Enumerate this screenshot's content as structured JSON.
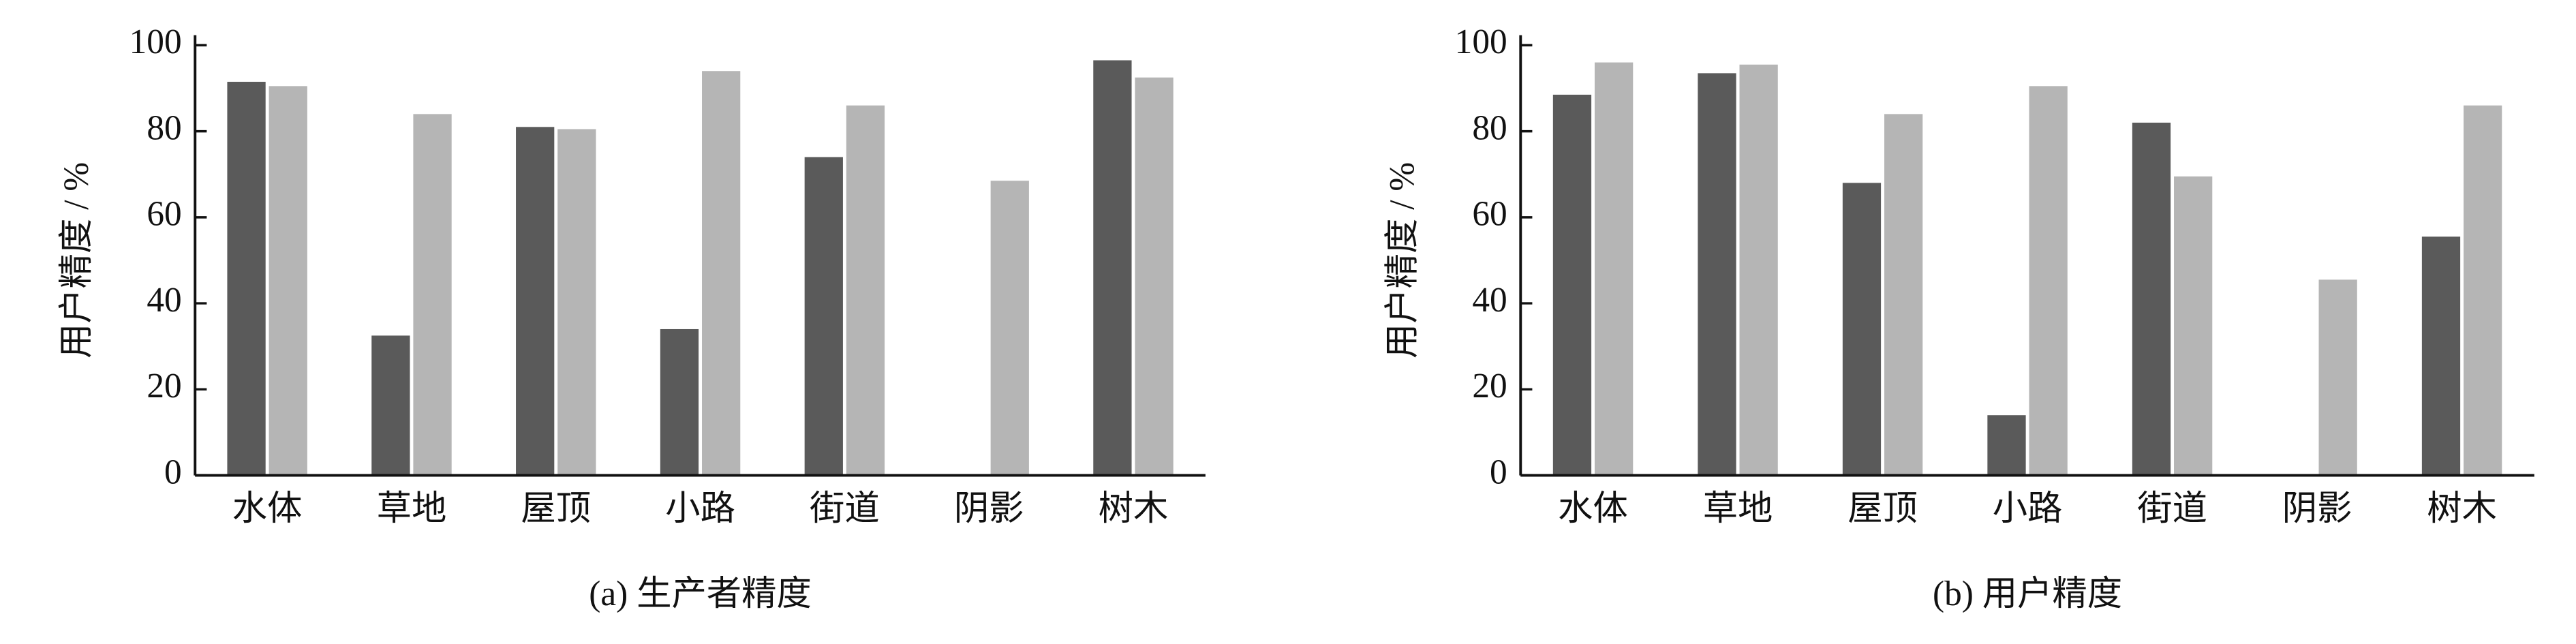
{
  "chart_data": [
    {
      "type": "bar",
      "title": "(a) 生产者精度",
      "y_label": "用户精度 / %",
      "categories": [
        "水体",
        "草地",
        "屋顶",
        "小路",
        "街道",
        "阴影",
        "树木"
      ],
      "series": [
        {
          "color": "#5a5a5a",
          "values": [
            91.5,
            32.5,
            81,
            34,
            74,
            null,
            96.5
          ]
        },
        {
          "color": "#b5b5b5",
          "values": [
            90.5,
            84,
            80.5,
            94,
            86,
            68.5,
            92.5
          ]
        }
      ],
      "ylim": [
        0,
        100
      ],
      "yticks": [
        0,
        20,
        40,
        60,
        80,
        100
      ]
    },
    {
      "type": "bar",
      "title": "(b) 用户精度",
      "y_label": "用户精度 / %",
      "categories": [
        "水体",
        "草地",
        "屋顶",
        "小路",
        "街道",
        "阴影",
        "树木"
      ],
      "series": [
        {
          "color": "#5a5a5a",
          "values": [
            88.5,
            93.5,
            68,
            14,
            82,
            null,
            55.5
          ]
        },
        {
          "color": "#b5b5b5",
          "values": [
            96,
            95.5,
            84,
            90.5,
            69.5,
            45.5,
            86
          ]
        }
      ],
      "ylim": [
        0,
        100
      ],
      "yticks": [
        0,
        20,
        40,
        60,
        80,
        100
      ]
    }
  ]
}
